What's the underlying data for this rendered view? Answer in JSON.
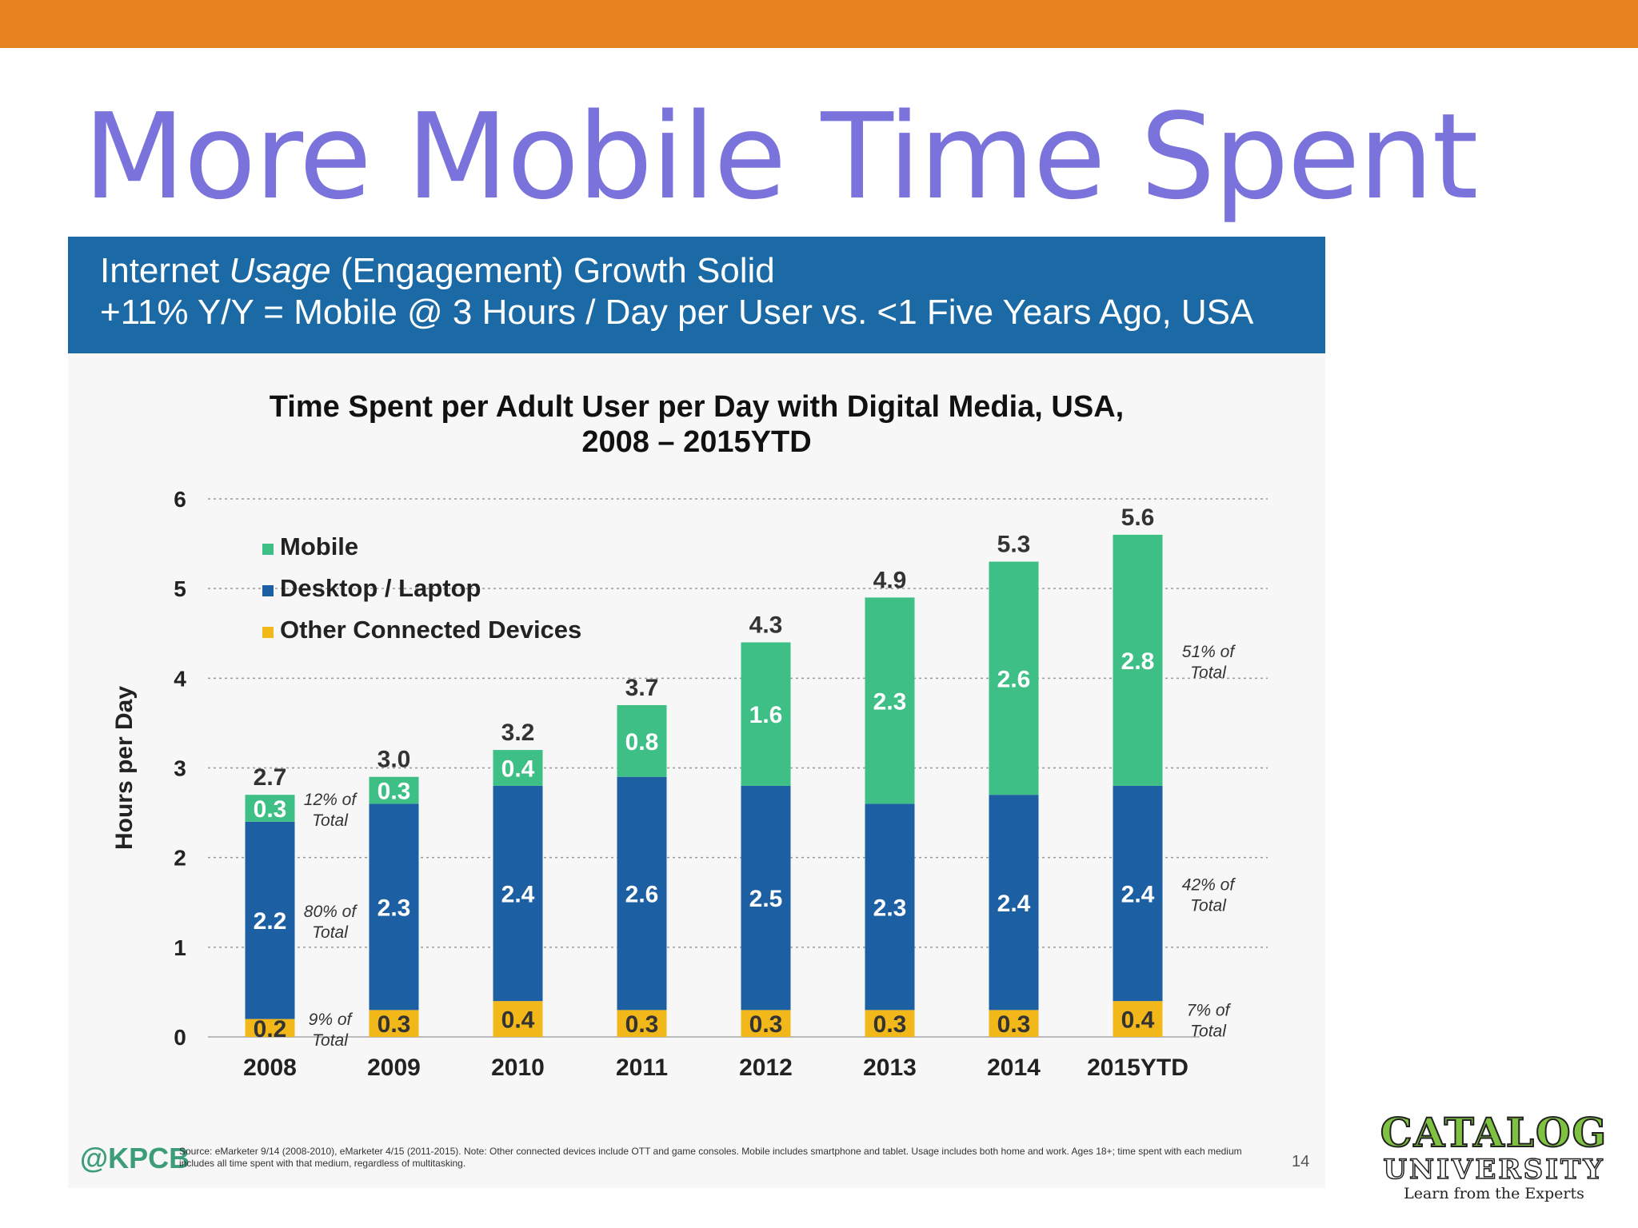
{
  "slide": {
    "title": "More Mobile Time Spent"
  },
  "banner": {
    "line1_a": "Internet ",
    "line1_b": "Usage",
    "line1_c": " (Engagement) Growth Solid",
    "line2": "+11% Y/Y = Mobile @ 3 Hours / Day per User vs. <1  Five Years Ago, USA"
  },
  "footer": {
    "brand": "@KPCB",
    "source": "Source: eMarketer 9/14 (2008-2010), eMarketer 4/15 (2011-2015). Note: Other connected devices include OTT and game consoles. Mobile includes smartphone and tablet. Usage includes both home and work. Ages 18+; time spent with each medium includes all time spent with that medium, regardless of multitasking.",
    "page_number": "14"
  },
  "logo": {
    "line1": "CATALOG",
    "line2": "UNIVERSITY",
    "line3": "Learn from the Experts"
  },
  "chart_data": {
    "type": "bar",
    "stacked": true,
    "title_line1": "Time Spent per Adult User per Day with Digital Media, USA,",
    "title_line2": "2008 – 2015YTD",
    "xlabel": "",
    "ylabel": "Hours per Day",
    "ylim": [
      0,
      6
    ],
    "yticks": [
      0,
      1,
      2,
      3,
      4,
      5,
      6
    ],
    "grid": true,
    "legend_position": "top-left",
    "categories": [
      "2008",
      "2009",
      "2010",
      "2011",
      "2012",
      "2013",
      "2014",
      "2015YTD"
    ],
    "series": [
      {
        "name": "Other Connected Devices",
        "color": "#f2b81a",
        "label_color": "#333333",
        "values": [
          0.2,
          0.3,
          0.4,
          0.3,
          0.3,
          0.3,
          0.3,
          0.4
        ]
      },
      {
        "name": "Desktop / Laptop",
        "color": "#1c5fa3",
        "label_color": "#ffffff",
        "values": [
          2.2,
          2.3,
          2.4,
          2.6,
          2.5,
          2.3,
          2.4,
          2.4
        ]
      },
      {
        "name": "Mobile",
        "color": "#3dbf86",
        "label_color": "#ffffff",
        "values": [
          0.3,
          0.3,
          0.4,
          0.8,
          1.6,
          2.3,
          2.6,
          2.8
        ]
      }
    ],
    "legend_order": [
      "Mobile",
      "Desktop / Laptop",
      "Other Connected Devices"
    ],
    "totals": [
      "2.7",
      "3.0",
      "3.2",
      "3.7",
      "4.3",
      "4.9",
      "5.3",
      "5.6"
    ],
    "annotations_2008": [
      {
        "series": "Mobile",
        "line1": "12% of",
        "line2": "Total"
      },
      {
        "series": "Desktop / Laptop",
        "line1": "80% of",
        "line2": "Total"
      },
      {
        "series": "Other Connected Devices",
        "line1": "9% of",
        "line2": "Total"
      }
    ],
    "annotations_2015": [
      {
        "series": "Mobile",
        "line1": "51% of",
        "line2": "Total"
      },
      {
        "series": "Desktop / Laptop",
        "line1": "42% of",
        "line2": "Total"
      },
      {
        "series": "Other Connected Devices",
        "line1": "7% of",
        "line2": "Total"
      }
    ]
  }
}
